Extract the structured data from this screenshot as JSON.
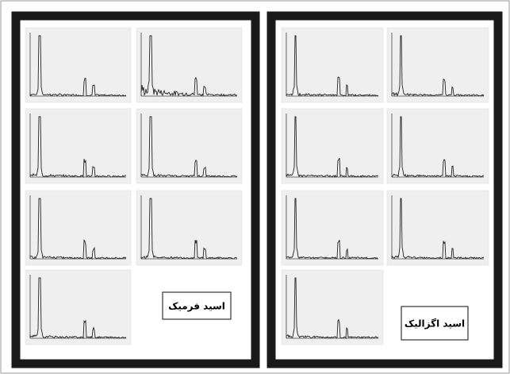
{
  "panels": [
    {
      "label": "اسید فرمیک"
    },
    {
      "label": "اسید اگزالیک"
    }
  ]
}
